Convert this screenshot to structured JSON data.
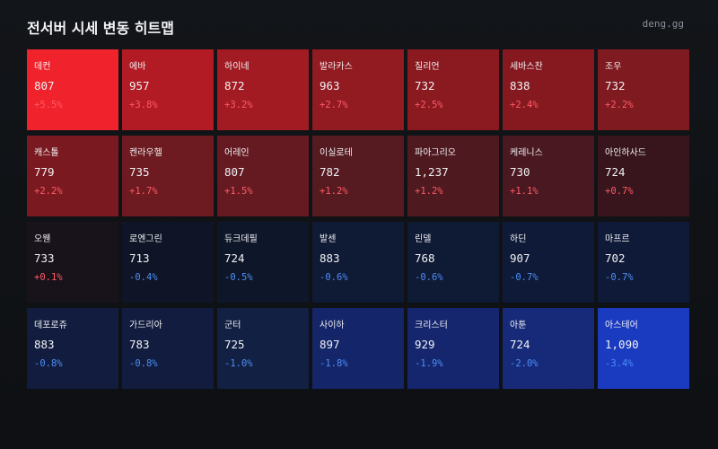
{
  "header": {
    "title": "전서버 시세 변동 히트맵",
    "site": "deng.gg"
  },
  "cells": [
    {
      "name": "데컨",
      "price": "807",
      "change": "+5.5%",
      "color": "#f0222b"
    },
    {
      "name": "에바",
      "price": "957",
      "change": "+3.8%",
      "color": "#b21b23"
    },
    {
      "name": "하이네",
      "price": "872",
      "change": "+3.2%",
      "color": "#a31b22"
    },
    {
      "name": "발라카스",
      "price": "963",
      "change": "+2.7%",
      "color": "#921a21"
    },
    {
      "name": "질리언",
      "price": "732",
      "change": "+2.5%",
      "color": "#8a1920"
    },
    {
      "name": "세바스찬",
      "price": "838",
      "change": "+2.4%",
      "color": "#861920"
    },
    {
      "name": "조우",
      "price": "732",
      "change": "+2.2%",
      "color": "#7e1a20"
    },
    {
      "name": "캐스톨",
      "price": "779",
      "change": "+2.2%",
      "color": "#7a1a20"
    },
    {
      "name": "켄라우헬",
      "price": "735",
      "change": "+1.7%",
      "color": "#6d1a20"
    },
    {
      "name": "어레인",
      "price": "807",
      "change": "+1.5%",
      "color": "#651a21"
    },
    {
      "name": "이실로테",
      "price": "782",
      "change": "+1.2%",
      "color": "#561a21"
    },
    {
      "name": "파아그리오",
      "price": "1,237",
      "change": "+1.2%",
      "color": "#4f1920"
    },
    {
      "name": "케레니스",
      "price": "730",
      "change": "+1.1%",
      "color": "#4a1820"
    },
    {
      "name": "아인하사드",
      "price": "724",
      "change": "+0.7%",
      "color": "#38151c"
    },
    {
      "name": "오웬",
      "price": "733",
      "change": "+0.1%",
      "color": "#18121a"
    },
    {
      "name": "로엔그린",
      "price": "713",
      "change": "-0.4%",
      "color": "#0f1526"
    },
    {
      "name": "듀크데필",
      "price": "724",
      "change": "-0.5%",
      "color": "#0e1629"
    },
    {
      "name": "발센",
      "price": "883",
      "change": "-0.6%",
      "color": "#0f1a35"
    },
    {
      "name": "린델",
      "price": "768",
      "change": "-0.6%",
      "color": "#0f1a35"
    },
    {
      "name": "하딘",
      "price": "907",
      "change": "-0.7%",
      "color": "#0f1a38"
    },
    {
      "name": "마프르",
      "price": "702",
      "change": "-0.7%",
      "color": "#0f1a38"
    },
    {
      "name": "데포로쥬",
      "price": "883",
      "change": "-0.8%",
      "color": "#111c3f"
    },
    {
      "name": "가드리아",
      "price": "783",
      "change": "-0.8%",
      "color": "#111c3f"
    },
    {
      "name": "군터",
      "price": "725",
      "change": "-1.0%",
      "color": "#112043"
    },
    {
      "name": "사이하",
      "price": "897",
      "change": "-1.8%",
      "color": "#14256a"
    },
    {
      "name": "크리스터",
      "price": "929",
      "change": "-1.9%",
      "color": "#15266e"
    },
    {
      "name": "아툰",
      "price": "724",
      "change": "-2.0%",
      "color": "#172a7a"
    },
    {
      "name": "아스테어",
      "price": "1,090",
      "change": "-3.4%",
      "color": "#1a3ac0"
    }
  ]
}
